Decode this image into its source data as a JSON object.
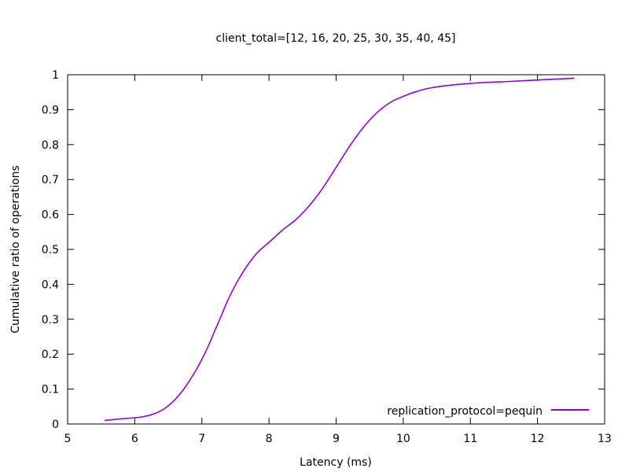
{
  "chart_data": {
    "type": "line",
    "title": "client_total=[12, 16, 20, 25, 30, 35, 40, 45]",
    "xlabel": "Latency (ms)",
    "ylabel": "Cumulative ratio of operations",
    "xlim": [
      5,
      13
    ],
    "ylim": [
      0,
      1
    ],
    "x_ticks": [
      "5",
      "6",
      "7",
      "8",
      "9",
      "10",
      "11",
      "12",
      "13"
    ],
    "y_ticks": [
      "0",
      "0.1",
      "0.2",
      "0.3",
      "0.4",
      "0.5",
      "0.6",
      "0.7",
      "0.8",
      "0.9",
      "1"
    ],
    "grid": false,
    "legend_position": "bottom-right",
    "series": [
      {
        "name": "replication_protocol=pequin",
        "color": "#9400d3",
        "x": [
          5.55,
          5.8,
          6.1,
          6.3,
          6.45,
          6.6,
          6.75,
          6.9,
          7.0,
          7.1,
          7.2,
          7.3,
          7.4,
          7.55,
          7.7,
          7.85,
          8.0,
          8.2,
          8.4,
          8.6,
          8.8,
          9.0,
          9.2,
          9.4,
          9.6,
          9.8,
          10.0,
          10.2,
          10.4,
          10.7,
          11.0,
          11.2,
          11.5,
          12.0,
          12.55
        ],
        "y": [
          0.01,
          0.015,
          0.02,
          0.03,
          0.045,
          0.07,
          0.105,
          0.15,
          0.185,
          0.225,
          0.27,
          0.315,
          0.36,
          0.415,
          0.46,
          0.495,
          0.52,
          0.555,
          0.585,
          0.625,
          0.675,
          0.735,
          0.795,
          0.848,
          0.89,
          0.92,
          0.938,
          0.952,
          0.962,
          0.97,
          0.975,
          0.978,
          0.98,
          0.985,
          0.99
        ]
      }
    ]
  }
}
